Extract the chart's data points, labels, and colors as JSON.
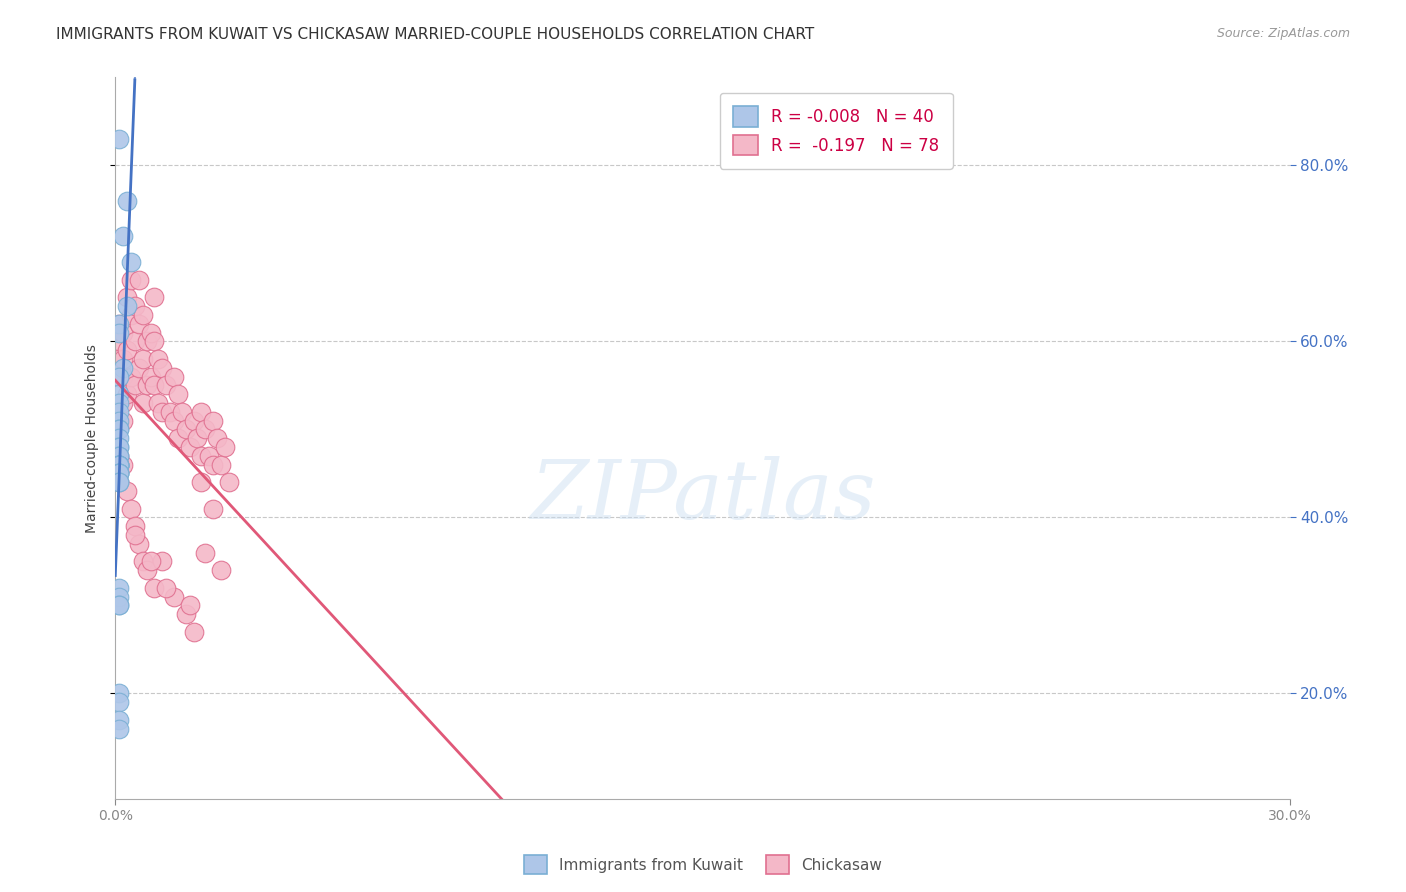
{
  "title": "IMMIGRANTS FROM KUWAIT VS CHICKASAW MARRIED-COUPLE HOUSEHOLDS CORRELATION CHART",
  "source": "Source: ZipAtlas.com",
  "ylabel": "Married-couple Households",
  "legend_r1": "R = -0.008",
  "legend_n1": "N = 40",
  "legend_r2": "R =  -0.197",
  "legend_n2": "N = 78",
  "series1_color": "#aec6e8",
  "series1_edge": "#7aafd4",
  "series1_line_color": "#4472c4",
  "series2_color": "#f4b8c8",
  "series2_edge": "#e07090",
  "series2_line_color": "#e05878",
  "background": "#ffffff",
  "grid_color": "#c8c8c8",
  "watermark": "ZIPatlas",
  "blue_x": [
    0.001,
    0.003,
    0.002,
    0.004,
    0.003,
    0.001,
    0.001,
    0.002,
    0.001,
    0.001,
    0.001,
    0.001,
    0.001,
    0.001,
    0.001,
    0.001,
    0.001,
    0.001,
    0.001,
    0.001,
    0.001,
    0.001,
    0.001,
    0.001,
    0.001,
    0.001,
    0.001,
    0.001,
    0.001,
    0.001,
    0.001,
    0.001,
    0.001,
    0.001,
    0.001,
    0.001,
    0.001,
    0.001,
    0.001,
    0.001
  ],
  "blue_y": [
    0.83,
    0.76,
    0.72,
    0.69,
    0.64,
    0.62,
    0.61,
    0.57,
    0.56,
    0.54,
    0.53,
    0.52,
    0.51,
    0.5,
    0.5,
    0.49,
    0.48,
    0.48,
    0.47,
    0.47,
    0.46,
    0.46,
    0.46,
    0.46,
    0.46,
    0.46,
    0.45,
    0.45,
    0.45,
    0.45,
    0.44,
    0.44,
    0.32,
    0.31,
    0.3,
    0.3,
    0.2,
    0.19,
    0.17,
    0.16
  ],
  "pink_x": [
    0.001,
    0.001,
    0.001,
    0.001,
    0.002,
    0.002,
    0.002,
    0.002,
    0.002,
    0.003,
    0.003,
    0.003,
    0.004,
    0.004,
    0.004,
    0.005,
    0.005,
    0.005,
    0.006,
    0.006,
    0.006,
    0.007,
    0.007,
    0.007,
    0.008,
    0.008,
    0.009,
    0.009,
    0.01,
    0.01,
    0.01,
    0.011,
    0.011,
    0.012,
    0.012,
    0.013,
    0.014,
    0.015,
    0.015,
    0.016,
    0.016,
    0.017,
    0.018,
    0.019,
    0.02,
    0.021,
    0.022,
    0.022,
    0.023,
    0.024,
    0.025,
    0.025,
    0.026,
    0.027,
    0.028,
    0.029,
    0.001,
    0.001,
    0.002,
    0.003,
    0.004,
    0.005,
    0.006,
    0.007,
    0.008,
    0.01,
    0.012,
    0.015,
    0.018,
    0.02,
    0.022,
    0.025,
    0.005,
    0.009,
    0.013,
    0.019,
    0.023,
    0.027
  ],
  "pink_y": [
    0.62,
    0.6,
    0.58,
    0.56,
    0.61,
    0.58,
    0.56,
    0.53,
    0.51,
    0.65,
    0.59,
    0.54,
    0.67,
    0.63,
    0.56,
    0.64,
    0.6,
    0.55,
    0.67,
    0.62,
    0.57,
    0.63,
    0.58,
    0.53,
    0.6,
    0.55,
    0.61,
    0.56,
    0.65,
    0.6,
    0.55,
    0.58,
    0.53,
    0.57,
    0.52,
    0.55,
    0.52,
    0.56,
    0.51,
    0.54,
    0.49,
    0.52,
    0.5,
    0.48,
    0.51,
    0.49,
    0.52,
    0.47,
    0.5,
    0.47,
    0.51,
    0.46,
    0.49,
    0.46,
    0.48,
    0.44,
    0.47,
    0.44,
    0.46,
    0.43,
    0.41,
    0.39,
    0.37,
    0.35,
    0.34,
    0.32,
    0.35,
    0.31,
    0.29,
    0.27,
    0.44,
    0.41,
    0.38,
    0.35,
    0.32,
    0.3,
    0.36,
    0.34
  ]
}
